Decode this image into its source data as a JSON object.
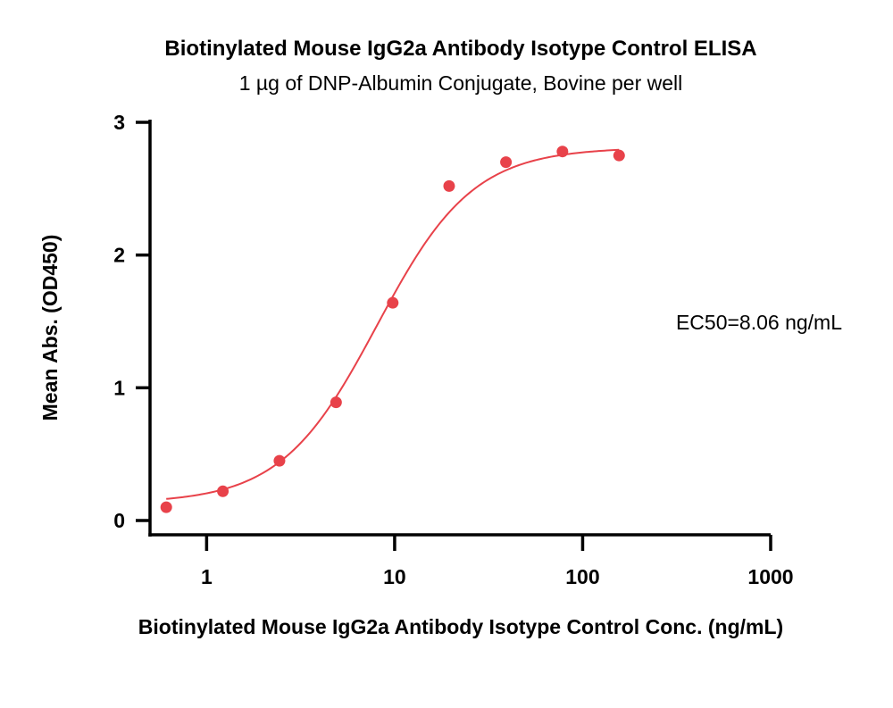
{
  "chart_data": {
    "type": "scatter",
    "title": "Biotinylated Mouse IgG2a Antibody Isotype Control ELISA",
    "subtitle": "1 µg of DNP-Albumin Conjugate, Bovine per well",
    "xlabel": "Biotinylated Mouse IgG2a Antibody Isotype Control Conc. (ng/mL)",
    "ylabel": "Mean Abs. (OD450)",
    "x_scale": "log",
    "xlim": [
      0.5,
      1000
    ],
    "ylim": [
      0,
      3
    ],
    "x_ticks": [
      "1",
      "10",
      "100",
      "1000"
    ],
    "y_ticks": [
      "0",
      "1",
      "2",
      "3"
    ],
    "grid": false,
    "annotation": "EC50=8.06  ng/mL",
    "series": [
      {
        "x": [
          0.61,
          1.22,
          2.44,
          4.88,
          9.77,
          19.5,
          39.1,
          78.1,
          156.3
        ],
        "y": [
          0.1,
          0.22,
          0.45,
          0.89,
          1.64,
          2.52,
          2.7,
          2.78,
          2.75
        ],
        "color": "#e8424a"
      }
    ],
    "fit_curve": {
      "type": "4PL",
      "color": "#e8424a",
      "x_range": [
        0.61,
        156.3
      ],
      "bottom": 0.13,
      "top": 2.81,
      "ec50": 8.06,
      "hill": 1.7
    }
  }
}
